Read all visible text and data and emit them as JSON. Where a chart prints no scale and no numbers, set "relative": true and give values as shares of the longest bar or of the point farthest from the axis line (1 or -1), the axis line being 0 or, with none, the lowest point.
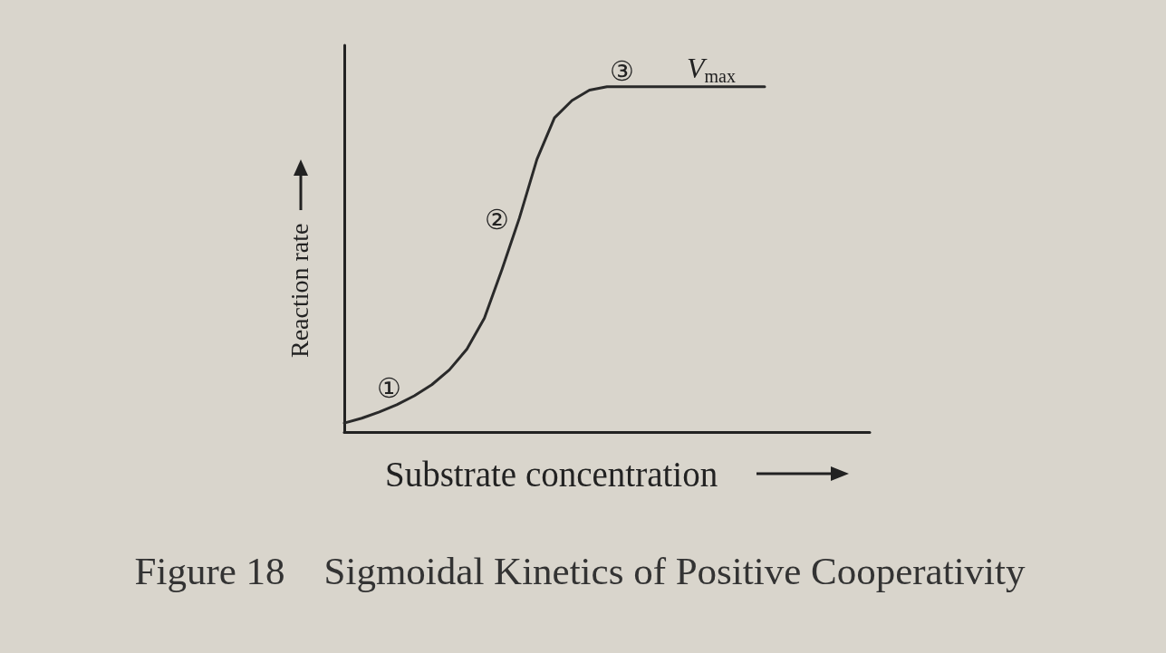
{
  "chart_data": {
    "type": "line",
    "title": "Figure 18    Sigmoidal Kinetics of Positive Cooperativity",
    "xlabel": "Substrate concentration",
    "ylabel": "Reaction rate",
    "relative": true,
    "color": "#2a2a2a",
    "marker": "none",
    "line_style": "solid",
    "grid": false,
    "categories": [
      null,
      null,
      null,
      null,
      null,
      null,
      null,
      null,
      null,
      null,
      null,
      null,
      null,
      null,
      null,
      null,
      null,
      null,
      null,
      null,
      null,
      null,
      null,
      null,
      null,
      null,
      null,
      null,
      null,
      null,
      null
    ],
    "values": [
      0.026,
      0.04,
      0.058,
      0.079,
      0.105,
      0.137,
      0.18,
      0.24,
      0.33,
      0.47,
      0.62,
      0.79,
      0.91,
      0.96,
      0.99,
      1,
      1,
      1,
      1,
      1,
      1,
      1,
      1,
      1,
      1,
      null,
      null,
      null,
      null,
      null,
      null
    ],
    "annotations": [
      "①",
      "②",
      "③",
      "V$_{max}$"
    ]
  }
}
